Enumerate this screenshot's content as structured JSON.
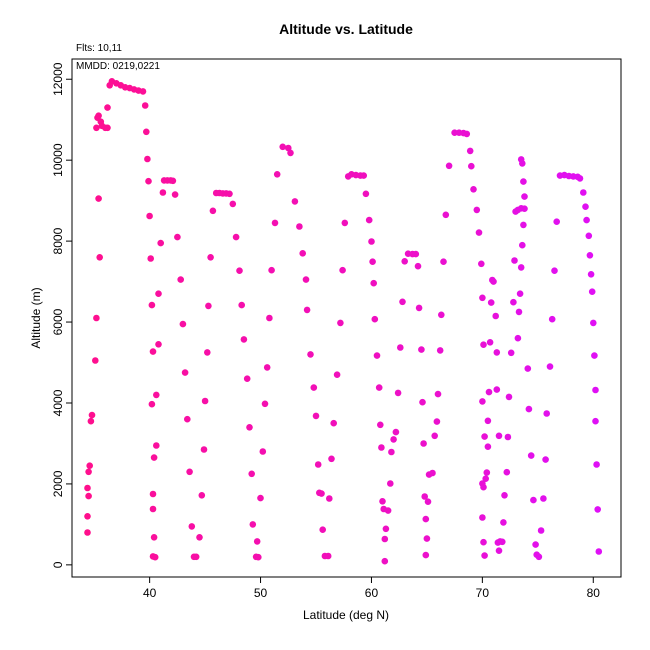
{
  "chart_data": {
    "type": "scatter",
    "title": "Altitude vs. Latitude",
    "annotations": [
      "Flts: 10,11",
      "MMDD: 0219,0221"
    ],
    "xlabel": "Latitude (deg N)",
    "ylabel": "Altitude (m)",
    "xlim": [
      33,
      82.5
    ],
    "ylim": [
      -300,
      12500
    ],
    "xticks": [
      40,
      50,
      60,
      70,
      80
    ],
    "yticks": [
      0,
      2000,
      4000,
      6000,
      8000,
      10000,
      12000
    ],
    "grid": false,
    "legend": "none",
    "colors": {
      "series_start": "#ff0f8c",
      "series_end": "#df10f6",
      "axis": "#000000"
    },
    "series": [
      {
        "values": [
          [
            34.4,
            800
          ],
          [
            34.4,
            1200
          ],
          [
            34.5,
            1700
          ],
          [
            34.4,
            1900
          ],
          [
            34.5,
            2300
          ],
          [
            34.6,
            2450
          ],
          [
            34.7,
            3550
          ],
          [
            34.8,
            3700
          ],
          [
            35.1,
            5050
          ],
          [
            35.2,
            6100
          ],
          [
            35.5,
            7600
          ],
          [
            35.4,
            9050
          ],
          [
            35.2,
            10800
          ],
          [
            35.3,
            11050
          ],
          [
            35.4,
            11100
          ],
          [
            35.6,
            10950
          ],
          [
            35.7,
            10850
          ],
          [
            36.0,
            10800
          ],
          [
            36.2,
            10800
          ],
          [
            36.2,
            11300
          ],
          [
            36.4,
            11850
          ],
          [
            36.6,
            11950
          ],
          [
            37.0,
            11900
          ],
          [
            37.4,
            11850
          ],
          [
            37.8,
            11800
          ],
          [
            38.2,
            11780
          ],
          [
            38.6,
            11750
          ],
          [
            39.0,
            11720
          ],
          [
            39.4,
            11700
          ],
          [
            39.6,
            11350
          ],
          [
            39.7,
            10700
          ],
          [
            39.8,
            10030
          ],
          [
            39.9,
            9480
          ],
          [
            40.0,
            8620
          ],
          [
            40.1,
            7570
          ],
          [
            40.2,
            6420
          ],
          [
            40.3,
            5270
          ],
          [
            40.2,
            3970
          ],
          [
            40.4,
            2650
          ],
          [
            40.3,
            1380
          ],
          [
            40.3,
            1750
          ],
          [
            40.4,
            680
          ],
          [
            40.3,
            210
          ],
          [
            40.5,
            190
          ],
          [
            40.6,
            2950
          ],
          [
            40.6,
            4200
          ],
          [
            40.8,
            5450
          ],
          [
            40.8,
            6700
          ],
          [
            41.0,
            7950
          ],
          [
            41.2,
            9200
          ],
          [
            41.3,
            9500
          ],
          [
            41.6,
            9500
          ],
          [
            41.9,
            9500
          ],
          [
            42.1,
            9490
          ],
          [
            42.3,
            9150
          ],
          [
            42.5,
            8100
          ],
          [
            42.8,
            7050
          ],
          [
            43.0,
            5950
          ],
          [
            43.2,
            4750
          ],
          [
            43.4,
            3600
          ],
          [
            43.6,
            2300
          ],
          [
            43.8,
            950
          ],
          [
            44.0,
            200
          ],
          [
            44.2,
            200
          ],
          [
            44.5,
            680
          ],
          [
            44.7,
            1720
          ],
          [
            44.9,
            2850
          ],
          [
            45.0,
            4050
          ],
          [
            45.2,
            5250
          ],
          [
            45.3,
            6400
          ],
          [
            45.5,
            7600
          ],
          [
            45.7,
            8750
          ],
          [
            46.0,
            9190
          ],
          [
            46.3,
            9190
          ],
          [
            46.6,
            9180
          ],
          [
            46.9,
            9180
          ],
          [
            47.2,
            9170
          ],
          [
            47.5,
            8920
          ],
          [
            47.8,
            8100
          ],
          [
            48.1,
            7270
          ],
          [
            48.3,
            6420
          ],
          [
            48.5,
            5570
          ],
          [
            48.8,
            4600
          ],
          [
            49.0,
            3400
          ],
          [
            49.2,
            2250
          ],
          [
            49.3,
            1000
          ],
          [
            49.6,
            200
          ],
          [
            49.8,
            190
          ],
          [
            49.7,
            580
          ],
          [
            50.0,
            1650
          ],
          [
            50.2,
            2800
          ],
          [
            50.4,
            3980
          ],
          [
            50.6,
            4880
          ],
          [
            50.8,
            6100
          ],
          [
            51.0,
            7280
          ],
          [
            51.3,
            8450
          ],
          [
            51.5,
            9650
          ],
          [
            52.0,
            10330
          ],
          [
            52.5,
            10300
          ],
          [
            52.7,
            10180
          ],
          [
            53.1,
            8980
          ],
          [
            53.5,
            8360
          ],
          [
            53.8,
            7700
          ],
          [
            54.1,
            7050
          ],
          [
            54.2,
            6300
          ],
          [
            54.5,
            5200
          ],
          [
            54.8,
            4380
          ],
          [
            55.0,
            3680
          ],
          [
            55.2,
            2480
          ],
          [
            55.3,
            1780
          ],
          [
            55.5,
            1760
          ],
          [
            55.6,
            870
          ],
          [
            55.8,
            220
          ],
          [
            56.1,
            220
          ],
          [
            56.2,
            1640
          ],
          [
            56.4,
            2620
          ],
          [
            56.6,
            3500
          ],
          [
            56.9,
            4700
          ],
          [
            57.2,
            5980
          ],
          [
            57.4,
            7280
          ],
          [
            57.6,
            8450
          ],
          [
            57.9,
            9600
          ],
          [
            58.2,
            9650
          ],
          [
            58.6,
            9630
          ],
          [
            59.0,
            9620
          ],
          [
            59.3,
            9620
          ],
          [
            59.5,
            9170
          ],
          [
            59.8,
            8520
          ],
          [
            60.0,
            7990
          ],
          [
            60.1,
            7490
          ],
          [
            60.2,
            6960
          ],
          [
            60.3,
            6070
          ],
          [
            60.5,
            5170
          ],
          [
            60.7,
            4380
          ],
          [
            60.8,
            3460
          ],
          [
            60.9,
            2900
          ],
          [
            61.0,
            1570
          ],
          [
            61.1,
            1380
          ],
          [
            61.2,
            640
          ],
          [
            61.2,
            90
          ],
          [
            61.3,
            890
          ],
          [
            61.5,
            1340
          ],
          [
            61.7,
            2010
          ],
          [
            61.8,
            2790
          ],
          [
            62.0,
            3100
          ],
          [
            62.2,
            3280
          ],
          [
            62.4,
            4250
          ],
          [
            62.6,
            5370
          ],
          [
            62.8,
            6500
          ],
          [
            63.0,
            7500
          ],
          [
            63.3,
            7690
          ],
          [
            63.7,
            7680
          ],
          [
            64.0,
            7680
          ],
          [
            64.2,
            7380
          ],
          [
            64.3,
            6350
          ],
          [
            64.5,
            5320
          ],
          [
            64.6,
            4020
          ],
          [
            64.7,
            3000
          ],
          [
            64.8,
            1690
          ],
          [
            64.9,
            1130
          ],
          [
            65.0,
            650
          ],
          [
            64.9,
            240
          ],
          [
            65.1,
            1560
          ],
          [
            65.2,
            2230
          ],
          [
            65.5,
            2270
          ],
          [
            65.7,
            3190
          ],
          [
            65.9,
            3540
          ],
          [
            66.0,
            4220
          ],
          [
            66.2,
            5300
          ],
          [
            66.3,
            6180
          ],
          [
            66.5,
            7490
          ],
          [
            66.7,
            8650
          ],
          [
            67.0,
            9860
          ],
          [
            67.5,
            10680
          ],
          [
            67.9,
            10680
          ],
          [
            68.3,
            10670
          ],
          [
            68.6,
            10650
          ],
          [
            68.9,
            10230
          ],
          [
            69.0,
            9850
          ],
          [
            69.2,
            9280
          ],
          [
            69.5,
            8770
          ],
          [
            69.7,
            8210
          ],
          [
            69.9,
            7440
          ],
          [
            70.0,
            6600
          ],
          [
            70.1,
            5440
          ],
          [
            70.0,
            4040
          ],
          [
            70.2,
            3170
          ],
          [
            70.0,
            2010
          ],
          [
            70.1,
            1920
          ],
          [
            70.0,
            1170
          ],
          [
            70.1,
            560
          ],
          [
            70.2,
            230
          ],
          [
            70.3,
            2130
          ],
          [
            70.4,
            2280
          ],
          [
            70.5,
            2920
          ],
          [
            70.5,
            3560
          ],
          [
            70.6,
            4270
          ],
          [
            70.7,
            5500
          ],
          [
            70.8,
            6480
          ],
          [
            70.9,
            7040
          ],
          [
            71.0,
            7000
          ],
          [
            71.2,
            6150
          ],
          [
            71.3,
            5250
          ],
          [
            71.3,
            4330
          ],
          [
            71.5,
            3190
          ],
          [
            71.4,
            550
          ],
          [
            71.6,
            580
          ],
          [
            71.5,
            350
          ],
          [
            71.8,
            570
          ],
          [
            71.9,
            1050
          ],
          [
            72.0,
            1720
          ],
          [
            72.2,
            2290
          ],
          [
            72.3,
            3160
          ],
          [
            72.4,
            4150
          ],
          [
            72.6,
            5240
          ],
          [
            72.8,
            6490
          ],
          [
            72.9,
            7520
          ],
          [
            73.0,
            8730
          ],
          [
            73.2,
            8770
          ],
          [
            73.5,
            8810
          ],
          [
            73.5,
            10020
          ],
          [
            73.6,
            9920
          ],
          [
            73.7,
            9470
          ],
          [
            73.8,
            8800
          ],
          [
            73.8,
            9100
          ],
          [
            73.7,
            8400
          ],
          [
            73.6,
            7900
          ],
          [
            73.5,
            7350
          ],
          [
            73.4,
            6700
          ],
          [
            73.3,
            6250
          ],
          [
            73.2,
            5600
          ],
          [
            74.1,
            4850
          ],
          [
            74.2,
            3850
          ],
          [
            74.4,
            2700
          ],
          [
            74.6,
            1600
          ],
          [
            74.8,
            500
          ],
          [
            74.9,
            250
          ],
          [
            75.1,
            200
          ],
          [
            75.3,
            850
          ],
          [
            75.5,
            1640
          ],
          [
            75.7,
            2600
          ],
          [
            75.8,
            3740
          ],
          [
            76.1,
            4900
          ],
          [
            76.3,
            6070
          ],
          [
            76.5,
            7270
          ],
          [
            76.7,
            8480
          ],
          [
            77.0,
            9620
          ],
          [
            77.4,
            9630
          ],
          [
            77.8,
            9610
          ],
          [
            78.2,
            9600
          ],
          [
            78.6,
            9590
          ],
          [
            78.8,
            9550
          ],
          [
            79.1,
            9200
          ],
          [
            79.3,
            8850
          ],
          [
            79.4,
            8520
          ],
          [
            79.6,
            8130
          ],
          [
            79.7,
            7650
          ],
          [
            79.8,
            7180
          ],
          [
            79.9,
            6750
          ],
          [
            80.0,
            5980
          ],
          [
            80.1,
            5170
          ],
          [
            80.2,
            4320
          ],
          [
            80.2,
            3550
          ],
          [
            80.3,
            2480
          ],
          [
            80.4,
            1370
          ],
          [
            80.5,
            330
          ]
        ]
      }
    ]
  }
}
